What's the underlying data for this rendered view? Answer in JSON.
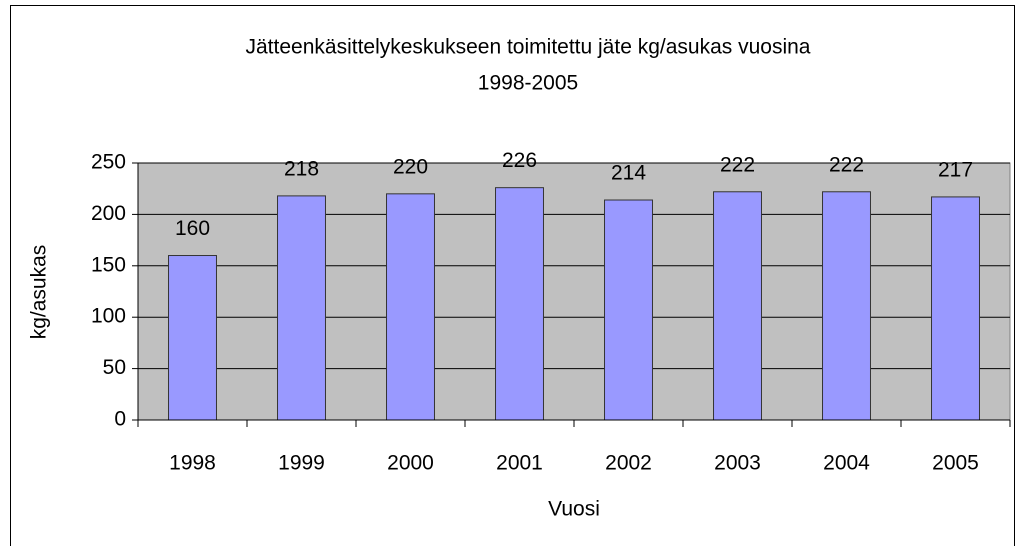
{
  "chart_data": {
    "type": "bar",
    "title": [
      "Jätteenkäsittelykeskukseen toimitettu jäte kg/asukas vuosina",
      "1998-2005"
    ],
    "x_label": "Vuosi",
    "y_label": "kg/asukas",
    "categories": [
      "1998",
      "1999",
      "2000",
      "2001",
      "2002",
      "2003",
      "2004",
      "2005"
    ],
    "values": [
      160,
      218,
      220,
      226,
      214,
      222,
      222,
      217
    ],
    "color": "#9999ff",
    "ylim": [
      0,
      250
    ],
    "yticks": [
      0,
      50,
      100,
      150,
      200,
      250
    ],
    "grid": true
  }
}
